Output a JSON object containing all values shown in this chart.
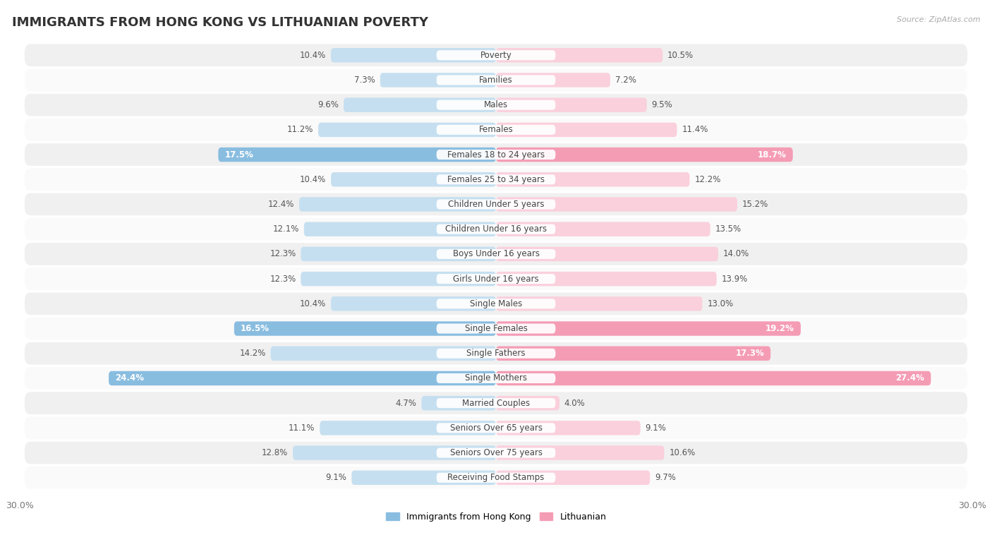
{
  "title": "IMMIGRANTS FROM HONG KONG VS LITHUANIAN POVERTY",
  "source": "Source: ZipAtlas.com",
  "categories": [
    "Poverty",
    "Families",
    "Males",
    "Females",
    "Females 18 to 24 years",
    "Females 25 to 34 years",
    "Children Under 5 years",
    "Children Under 16 years",
    "Boys Under 16 years",
    "Girls Under 16 years",
    "Single Males",
    "Single Females",
    "Single Fathers",
    "Single Mothers",
    "Married Couples",
    "Seniors Over 65 years",
    "Seniors Over 75 years",
    "Receiving Food Stamps"
  ],
  "hk_values": [
    10.4,
    7.3,
    9.6,
    11.2,
    17.5,
    10.4,
    12.4,
    12.1,
    12.3,
    12.3,
    10.4,
    16.5,
    14.2,
    24.4,
    4.7,
    11.1,
    12.8,
    9.1
  ],
  "lt_values": [
    10.5,
    7.2,
    9.5,
    11.4,
    18.7,
    12.2,
    15.2,
    13.5,
    14.0,
    13.9,
    13.0,
    19.2,
    17.3,
    27.4,
    4.0,
    9.1,
    10.6,
    9.7
  ],
  "hk_color": "#89bde0",
  "lt_color": "#f59cb5",
  "hk_color_light": "#c5dff0",
  "lt_color_light": "#fad0dc",
  "hk_label": "Immigrants from Hong Kong",
  "lt_label": "Lithuanian",
  "background_color": "#ffffff",
  "row_color_even": "#f0f0f0",
  "row_color_odd": "#fafafa",
  "xlim": 30.0,
  "bar_height": 0.58,
  "title_fontsize": 13,
  "label_fontsize": 8.5,
  "value_fontsize": 8.5,
  "inside_label_threshold": 16.0
}
